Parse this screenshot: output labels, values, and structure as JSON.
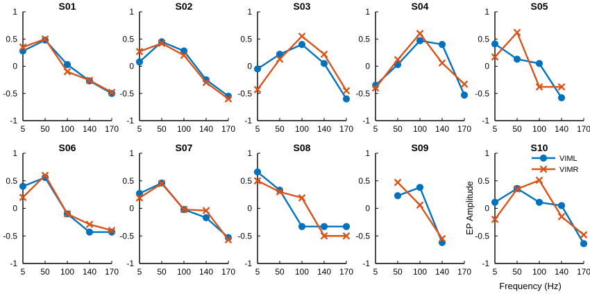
{
  "figure": {
    "xlabel": "Frequency (Hz)",
    "ylabel": "EP Amplitude"
  },
  "legend": {
    "placement": "right of last panel",
    "entries": [
      {
        "label": "VIML",
        "color": "#0072BD",
        "marker": "circle"
      },
      {
        "label": "VIMR",
        "color": "#D95319",
        "marker": "x"
      }
    ]
  },
  "chart_data": [
    {
      "type": "line",
      "title": "S01",
      "categories": [
        "5",
        "50",
        "100",
        "140",
        "170"
      ],
      "ylim": [
        -1,
        1
      ],
      "yticks": [
        -1,
        -0.5,
        0,
        0.5,
        1
      ],
      "series": [
        {
          "name": "VIML",
          "values": [
            0.28,
            0.48,
            0.03,
            -0.27,
            -0.5
          ]
        },
        {
          "name": "VIMR",
          "values": [
            0.35,
            0.5,
            -0.1,
            -0.26,
            -0.48
          ]
        }
      ]
    },
    {
      "type": "line",
      "title": "S02",
      "categories": [
        "5",
        "50",
        "100",
        "140",
        "170"
      ],
      "ylim": [
        -1,
        1
      ],
      "yticks": [
        -1,
        -0.5,
        0,
        0.5,
        1
      ],
      "series": [
        {
          "name": "VIML",
          "values": [
            0.08,
            0.45,
            0.28,
            -0.25,
            -0.55
          ]
        },
        {
          "name": "VIMR",
          "values": [
            0.27,
            0.42,
            0.2,
            -0.3,
            -0.6
          ]
        }
      ]
    },
    {
      "type": "line",
      "title": "S03",
      "categories": [
        "5",
        "50",
        "100",
        "140",
        "170"
      ],
      "ylim": [
        -1,
        1
      ],
      "yticks": [
        -1,
        -0.5,
        0,
        0.5,
        1
      ],
      "series": [
        {
          "name": "VIML",
          "values": [
            -0.05,
            0.22,
            0.4,
            0.05,
            -0.6
          ]
        },
        {
          "name": "VIMR",
          "values": [
            -0.43,
            0.13,
            0.55,
            0.22,
            -0.45
          ]
        }
      ]
    },
    {
      "type": "line",
      "title": "S04",
      "categories": [
        "5",
        "50",
        "100",
        "140",
        "170"
      ],
      "ylim": [
        -1,
        1
      ],
      "yticks": [
        -1,
        -0.5,
        0,
        0.5,
        1
      ],
      "series": [
        {
          "name": "VIML",
          "values": [
            -0.35,
            0.03,
            0.47,
            0.4,
            -0.53
          ]
        },
        {
          "name": "VIMR",
          "values": [
            -0.4,
            0.12,
            0.6,
            0.06,
            -0.33
          ]
        }
      ]
    },
    {
      "type": "line",
      "title": "S05",
      "categories": [
        "5",
        "50",
        "100",
        "140",
        "170"
      ],
      "ylim": [
        -1,
        1
      ],
      "yticks": [
        -1,
        -0.5,
        0,
        0.5,
        1
      ],
      "series": [
        {
          "name": "VIML",
          "values": [
            0.41,
            0.13,
            0.05,
            -0.58,
            null
          ]
        },
        {
          "name": "VIMR",
          "values": [
            0.17,
            0.62,
            -0.38,
            -0.38,
            null
          ]
        }
      ]
    },
    {
      "type": "line",
      "title": "S06",
      "categories": [
        "5",
        "50",
        "100",
        "140",
        "170"
      ],
      "ylim": [
        -1,
        1
      ],
      "yticks": [
        -1,
        -0.5,
        0,
        0.5,
        1
      ],
      "series": [
        {
          "name": "VIML",
          "values": [
            0.4,
            0.56,
            -0.1,
            -0.43,
            -0.43
          ]
        },
        {
          "name": "VIMR",
          "values": [
            0.2,
            0.6,
            -0.1,
            -0.29,
            -0.4
          ]
        }
      ]
    },
    {
      "type": "line",
      "title": "S07",
      "categories": [
        "5",
        "50",
        "100",
        "140",
        "170"
      ],
      "ylim": [
        -1,
        1
      ],
      "yticks": [
        -1,
        -0.5,
        0,
        0.5,
        1
      ],
      "series": [
        {
          "name": "VIML",
          "values": [
            0.27,
            0.46,
            -0.02,
            -0.17,
            -0.53
          ]
        },
        {
          "name": "VIMR",
          "values": [
            0.19,
            0.45,
            -0.02,
            -0.04,
            -0.57
          ]
        }
      ]
    },
    {
      "type": "line",
      "title": "S08",
      "categories": [
        "5",
        "50",
        "100",
        "140",
        "170"
      ],
      "ylim": [
        -1,
        1
      ],
      "yticks": [
        -1,
        -0.5,
        0,
        0.5,
        1
      ],
      "series": [
        {
          "name": "VIML",
          "values": [
            0.66,
            0.33,
            -0.33,
            -0.33,
            -0.33
          ]
        },
        {
          "name": "VIMR",
          "values": [
            0.5,
            0.3,
            0.19,
            -0.5,
            -0.5
          ]
        }
      ]
    },
    {
      "type": "line",
      "title": "S09",
      "categories": [
        "5",
        "50",
        "100",
        "140",
        "170"
      ],
      "ylim": [
        -1,
        1
      ],
      "yticks": [
        -1,
        -0.5,
        0,
        0.5,
        1
      ],
      "series": [
        {
          "name": "VIML",
          "values": [
            null,
            0.23,
            0.38,
            -0.62,
            null
          ]
        },
        {
          "name": "VIMR",
          "values": [
            null,
            0.47,
            0.06,
            -0.55,
            null
          ]
        }
      ]
    },
    {
      "type": "line",
      "title": "S10",
      "categories": [
        "5",
        "50",
        "100",
        "140",
        "170"
      ],
      "ylim": [
        -1,
        1
      ],
      "yticks": [
        -1,
        -0.5,
        0,
        0.5,
        1
      ],
      "series": [
        {
          "name": "VIML",
          "values": [
            0.11,
            0.36,
            0.11,
            0.05,
            -0.64
          ]
        },
        {
          "name": "VIMR",
          "values": [
            -0.2,
            0.35,
            0.51,
            -0.15,
            -0.48
          ]
        }
      ]
    }
  ]
}
